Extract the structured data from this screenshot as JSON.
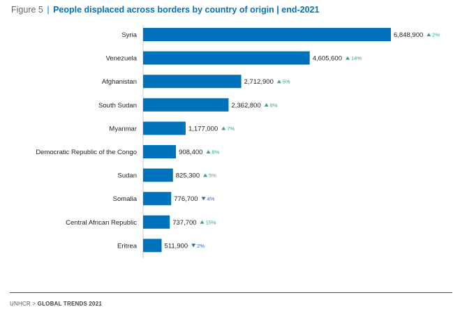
{
  "header": {
    "figure_label": "Figure 5",
    "separator": "|",
    "title": "People displaced across borders by country of origin | end-2021"
  },
  "footer": {
    "org": "UNHCR",
    "arrow": ">",
    "report": "GLOBAL TRENDS 2021"
  },
  "colors": {
    "bar": "#0072bc",
    "up": "#3aa38a",
    "down": "#2f67b1"
  },
  "chart_data": {
    "type": "bar",
    "orientation": "horizontal",
    "title": "People displaced across borders by country of origin | end-2021",
    "categories": [
      "Syria",
      "Venezuela",
      "Afghanistan",
      "South Sudan",
      "Myanmar",
      "Democratic Republic of the Congo",
      "Sudan",
      "Somalia",
      "Central African Republic",
      "Eritrea"
    ],
    "values": [
      6848900,
      4605600,
      2712900,
      2362800,
      1177000,
      908400,
      825300,
      776700,
      737700,
      511900
    ],
    "value_labels": [
      "6,848,900",
      "4,605,600",
      "2,712,900",
      "2,362,800",
      "1,177,000",
      "908,400",
      "825,300",
      "776,700",
      "737,700",
      "511,900"
    ],
    "changes": [
      {
        "direction": "up",
        "label": "2%"
      },
      {
        "direction": "up",
        "label": "14%"
      },
      {
        "direction": "up",
        "label": "5%"
      },
      {
        "direction": "up",
        "label": "8%"
      },
      {
        "direction": "up",
        "label": "7%"
      },
      {
        "direction": "up",
        "label": "8%"
      },
      {
        "direction": "up",
        "label": "5%"
      },
      {
        "direction": "down",
        "label": "4%"
      },
      {
        "direction": "up",
        "label": "15%"
      },
      {
        "direction": "down",
        "label": "2%"
      }
    ],
    "xlim": [
      0,
      6848900
    ],
    "grid": false,
    "legend": "none"
  }
}
